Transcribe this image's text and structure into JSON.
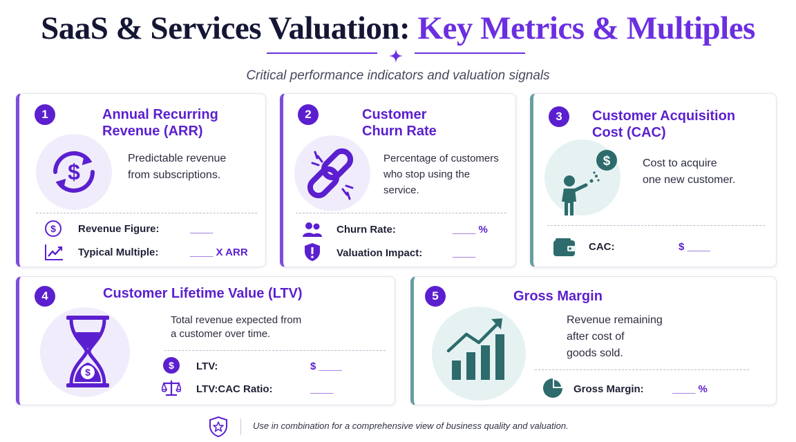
{
  "header": {
    "title_main": "SaaS & Services Valuation: ",
    "title_accent": "Key Metrics & Multiples",
    "subtitle": "Critical performance indicators and valuation signals"
  },
  "cards": [
    {
      "number": "1",
      "title_line1": "Annual Recurring",
      "title_line2": "Revenue (ARR)",
      "description_line1": "Predictable revenue",
      "description_line2": "from subscriptions.",
      "icon": "dollar-cycle-icon",
      "rows": [
        {
          "icon": "dollar-circle-icon",
          "label": "Revenue Figure:",
          "value": "____"
        },
        {
          "icon": "trend-line-icon",
          "label": "Typical Multiple:",
          "value": "____ X ARR"
        }
      ]
    },
    {
      "number": "2",
      "title_line1": "Customer",
      "title_line2": "Churn Rate",
      "description_line1": "Percentage of customers",
      "description_line2": "who stop using the",
      "description_line3": "service.",
      "icon": "broken-link-icon",
      "rows": [
        {
          "icon": "users-icon",
          "label": "Churn Rate:",
          "value": "____ %"
        },
        {
          "icon": "alert-shield-icon",
          "label": "Valuation Impact:",
          "value": "____"
        }
      ]
    },
    {
      "number": "3",
      "title_line1": "Customer Acquisition",
      "title_line2": "Cost (CAC)",
      "description_line1": "Cost to acquire",
      "description_line2": "one new customer.",
      "icon": "person-attracting-dollar-icon",
      "rows": [
        {
          "icon": "wallet-icon",
          "label": "CAC:",
          "value": "$ ____"
        }
      ]
    },
    {
      "number": "4",
      "title_line1": "Customer Lifetime Value (LTV)",
      "description_line1": "Total revenue expected from",
      "description_line2": "a customer over time.",
      "icon": "hourglass-dollar-icon",
      "rows": [
        {
          "icon": "dollar-circle-icon",
          "label": "LTV:",
          "value": "$ ____"
        },
        {
          "icon": "scale-icon",
          "label": "LTV:CAC Ratio:",
          "value": "____"
        }
      ]
    },
    {
      "number": "5",
      "title_line1": "Gross Margin",
      "description_line1": "Revenue remaining",
      "description_line2": "after cost of",
      "description_line3": "goods sold.",
      "icon": "bar-chart-growth-icon",
      "rows": [
        {
          "icon": "pie-chart-icon",
          "label": "Gross Margin:",
          "value": "____ %"
        }
      ]
    }
  ],
  "footer": {
    "icon": "shield-star-icon",
    "text": "Use in combination for a comprehensive view of business quality and valuation."
  },
  "colors": {
    "accent_purple": "#5b1fcf",
    "accent_teal": "#2d6b6c",
    "navy": "#141634"
  }
}
